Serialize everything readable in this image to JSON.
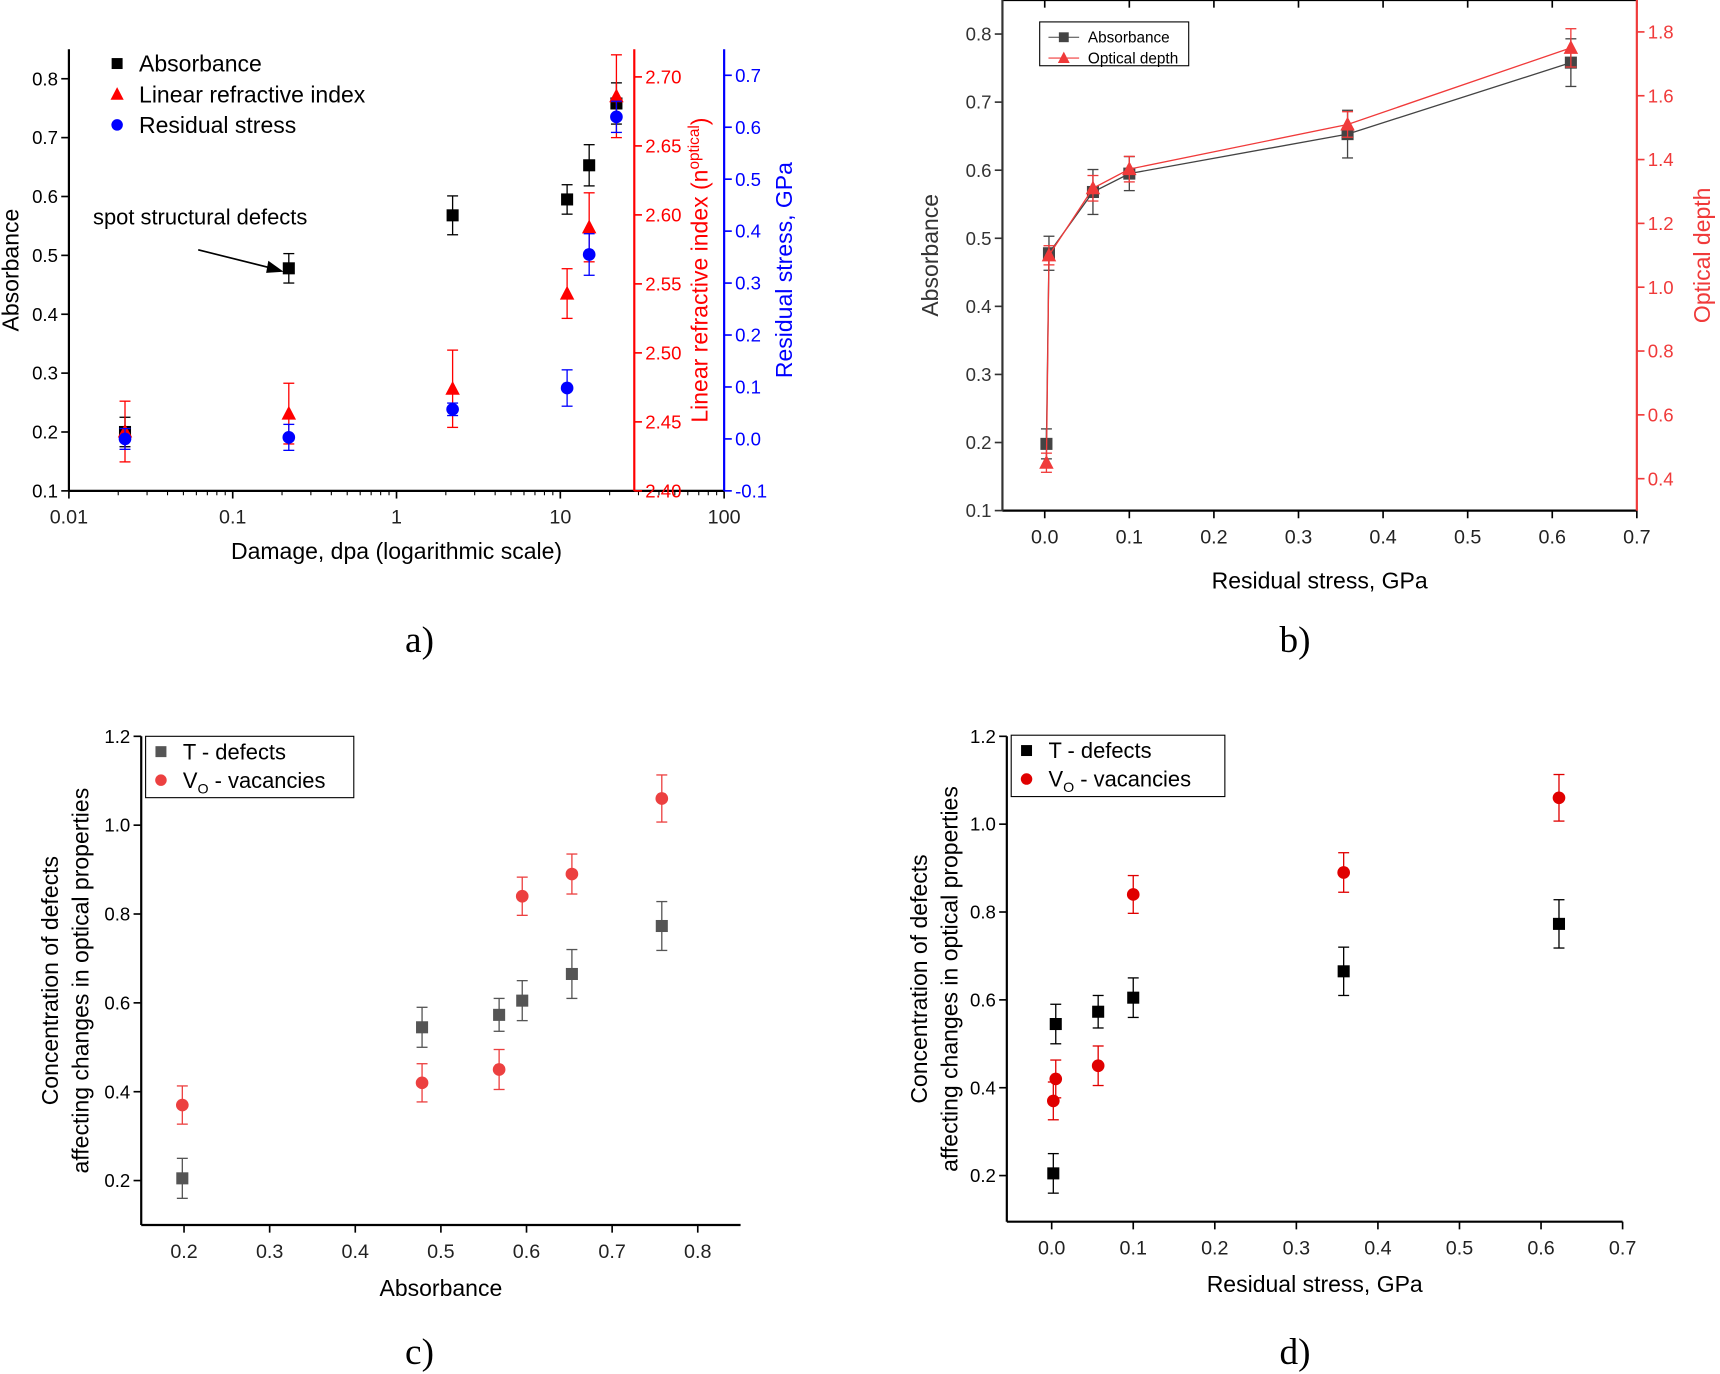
{
  "chart_data": [
    {
      "panel_label": "a)",
      "type": "scatter",
      "xlabel": "Damage, dpa (logarithmic scale)",
      "xscale": "log",
      "xlim": [
        0.01,
        100
      ],
      "xticks": [
        "0.01",
        "0.1",
        "1",
        "10",
        "100"
      ],
      "annotation": "spot structural defects",
      "axes": [
        {
          "id": "left",
          "label": "Absorbance",
          "color": "#000000",
          "ylim": [
            0.1,
            0.85
          ],
          "ticks": [
            "0.1",
            "0.2",
            "0.3",
            "0.4",
            "0.5",
            "0.6",
            "0.7",
            "0.8"
          ]
        },
        {
          "id": "red",
          "label": "Linear refractive index (n",
          "label_sup": "optical",
          "label_end": ")",
          "color": "#ff0000",
          "ylim": [
            2.4,
            2.72
          ],
          "ticks": [
            "2.40",
            "2.45",
            "2.50",
            "2.55",
            "2.60",
            "2.65",
            "2.70"
          ]
        },
        {
          "id": "blue",
          "label": "Residual stress, GPa",
          "color": "#0000ff",
          "ylim": [
            -0.1,
            0.75
          ],
          "ticks": [
            "-0.1",
            "0.0",
            "0.1",
            "0.2",
            "0.3",
            "0.4",
            "0.5",
            "0.6",
            "0.7"
          ]
        }
      ],
      "legend": "top-left",
      "series": [
        {
          "name": "Absorbance",
          "axis": "left",
          "marker": "square",
          "color": "#000000",
          "x": [
            0.022,
            0.22,
            2.2,
            11,
            15,
            22
          ],
          "y": [
            0.2,
            0.478,
            0.568,
            0.595,
            0.653,
            0.758
          ],
          "err": [
            0.025,
            0.025,
            0.033,
            0.025,
            0.035,
            0.035
          ]
        },
        {
          "name": "Linear refractive index",
          "axis": "red",
          "marker": "triangle",
          "color": "#ff0000",
          "x": [
            0.022,
            0.22,
            2.2,
            11,
            15,
            22
          ],
          "y": [
            2.443,
            2.456,
            2.474,
            2.543,
            2.591,
            2.686
          ],
          "err": [
            0.022,
            0.022,
            0.028,
            0.018,
            0.025,
            0.03
          ]
        },
        {
          "name": "Residual stress",
          "axis": "blue",
          "marker": "circle",
          "color": "#0000ff",
          "x": [
            0.022,
            0.22,
            2.2,
            11,
            15,
            22
          ],
          "y": [
            0.0,
            0.003,
            0.057,
            0.098,
            0.355,
            0.62
          ],
          "err": [
            0.02,
            0.025,
            0.012,
            0.035,
            0.04,
            0.03
          ]
        }
      ]
    },
    {
      "panel_label": "b)",
      "type": "line",
      "xlabel": "Residual stress, GPa",
      "xlim": [
        -0.05,
        0.7
      ],
      "xticks": [
        "0.0",
        "0.1",
        "0.2",
        "0.3",
        "0.4",
        "0.5",
        "0.6",
        "0.7"
      ],
      "axes": [
        {
          "id": "left",
          "label": "Absorbance",
          "color": "#333333",
          "ylim": [
            0.1,
            0.85
          ],
          "ticks": [
            "0.1",
            "0.2",
            "0.3",
            "0.4",
            "0.5",
            "0.6",
            "0.7",
            "0.8"
          ]
        },
        {
          "id": "red",
          "label": "Optical depth",
          "color": "#f03a3a",
          "ylim": [
            0.3,
            1.9
          ],
          "ticks": [
            "0.4",
            "0.6",
            "0.8",
            "1.0",
            "1.2",
            "1.4",
            "1.6",
            "1.8"
          ]
        }
      ],
      "legend": "top-left",
      "series": [
        {
          "name": "Absorbance",
          "axis": "left",
          "marker": "square",
          "color": "#444444",
          "x": [
            0.002,
            0.005,
            0.057,
            0.1,
            0.358,
            0.622
          ],
          "y": [
            0.198,
            0.478,
            0.568,
            0.595,
            0.653,
            0.758
          ],
          "err": [
            0.022,
            0.025,
            0.033,
            0.025,
            0.035,
            0.035
          ]
        },
        {
          "name": "Optical depth",
          "axis": "red",
          "marker": "triangle",
          "color": "#f03a3a",
          "x": [
            0.002,
            0.005,
            0.057,
            0.1,
            0.358,
            0.622
          ],
          "y": [
            0.45,
            1.1,
            1.31,
            1.37,
            1.51,
            1.75
          ],
          "err": [
            0.03,
            0.03,
            0.04,
            0.04,
            0.04,
            0.06
          ]
        }
      ]
    },
    {
      "panel_label": "c)",
      "type": "scatter",
      "xlabel": "Absorbance",
      "xlim": [
        0.15,
        0.85
      ],
      "xticks": [
        "0.2",
        "0.3",
        "0.4",
        "0.5",
        "0.6",
        "0.7",
        "0.8"
      ],
      "axes": [
        {
          "id": "left",
          "label": "Concentration of defects",
          "label2": "affecting changes in optical properties",
          "color": "#000000",
          "ylim": [
            0.1,
            1.2
          ],
          "ticks": [
            "0.2",
            "0.4",
            "0.6",
            "0.8",
            "1.0",
            "1.2"
          ]
        }
      ],
      "legend": "top-left",
      "series": [
        {
          "name": "T - defects",
          "axis": "left",
          "marker": "square",
          "color": "#555555",
          "x": [
            0.198,
            0.478,
            0.568,
            0.595,
            0.653,
            0.758
          ],
          "y": [
            0.205,
            0.545,
            0.573,
            0.605,
            0.665,
            0.773
          ],
          "err": [
            0.045,
            0.045,
            0.037,
            0.045,
            0.055,
            0.055
          ]
        },
        {
          "name": "V",
          "name_sub": "O",
          "name_end": " - vacancies",
          "axis": "left",
          "marker": "circle",
          "color": "#ec4040",
          "x": [
            0.198,
            0.478,
            0.568,
            0.595,
            0.653,
            0.758
          ],
          "y": [
            0.37,
            0.42,
            0.45,
            0.84,
            0.89,
            1.06
          ],
          "err": [
            0.043,
            0.043,
            0.045,
            0.043,
            0.045,
            0.053
          ]
        }
      ]
    },
    {
      "panel_label": "d)",
      "type": "scatter",
      "xlabel": "Residual stress, GPa",
      "xlim": [
        -0.055,
        0.7
      ],
      "xticks": [
        "0.0",
        "0.1",
        "0.2",
        "0.3",
        "0.4",
        "0.5",
        "0.6",
        "0.7"
      ],
      "axes": [
        {
          "id": "left",
          "label": "Concentration of defects",
          "label2": "affecting changes in optical properties",
          "color": "#000000",
          "ylim": [
            0.095,
            1.2
          ],
          "ticks": [
            "0.2",
            "0.4",
            "0.6",
            "0.8",
            "1.0",
            "1.2"
          ]
        }
      ],
      "legend": "top-left",
      "series": [
        {
          "name": "T - defects",
          "axis": "left",
          "marker": "square",
          "color": "#000000",
          "x": [
            0.002,
            0.005,
            0.057,
            0.1,
            0.358,
            0.622
          ],
          "y": [
            0.205,
            0.545,
            0.573,
            0.605,
            0.665,
            0.773
          ],
          "err": [
            0.045,
            0.045,
            0.037,
            0.045,
            0.055,
            0.055
          ]
        },
        {
          "name": "V",
          "name_sub": "O",
          "name_end": " - vacancies",
          "axis": "left",
          "marker": "circle",
          "color": "#e00000",
          "x": [
            0.002,
            0.005,
            0.057,
            0.1,
            0.358,
            0.622
          ],
          "y": [
            0.37,
            0.42,
            0.45,
            0.84,
            0.89,
            1.06
          ],
          "err": [
            0.043,
            0.043,
            0.045,
            0.043,
            0.045,
            0.053
          ]
        }
      ]
    }
  ]
}
